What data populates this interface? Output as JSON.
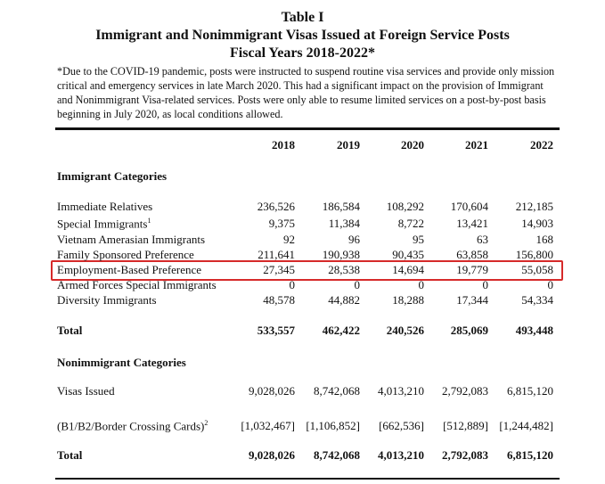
{
  "header": {
    "lines": [
      "Table I",
      "Immigrant and Nonimmigrant Visas Issued at Foreign Service Posts",
      "Fiscal Years  2018-2022*"
    ],
    "note": "*Due to the COVID-19 pandemic, posts were instructed to suspend routine visa services and provide only mission critical and emergency services in late March 2020.  This had a significant impact on the provision of Immigrant and Nonimmigrant Visa-related services.  Posts were only able to resume limited services on a post-by-post basis beginning in July 2020, as local conditions allowed."
  },
  "table": {
    "columns": [
      "2018",
      "2019",
      "2020",
      "2021",
      "2022"
    ],
    "rows": [
      {
        "section": "Immigrant Categories"
      },
      {
        "label": "Immediate Relatives",
        "cells": [
          "236,526",
          "186,584",
          "108,292",
          "170,604",
          "212,185"
        ]
      },
      {
        "label": "Special Immigrants",
        "sup": "1",
        "cells": [
          "9,375",
          "11,384",
          "8,722",
          "13,421",
          "14,903"
        ]
      },
      {
        "label": "Vietnam Amerasian Immigrants",
        "cells": [
          "92",
          "96",
          "95",
          "63",
          "168"
        ]
      },
      {
        "label": "Family Sponsored Preference",
        "cells": [
          "211,641",
          "190,938",
          "90,435",
          "63,858",
          "156,800"
        ]
      },
      {
        "label": "Employment-Based Preference",
        "cells": [
          "27,345",
          "28,538",
          "14,694",
          "19,779",
          "55,058"
        ]
      },
      {
        "label": "Armed Forces Special Immigrants",
        "cells": [
          "0",
          "0",
          "0",
          "0",
          "0"
        ]
      },
      {
        "label": "Diversity Immigrants",
        "cells": [
          "48,578",
          "44,882",
          "18,288",
          "17,344",
          "54,334"
        ]
      },
      {
        "label": "Total",
        "bold": true,
        "cells": [
          "533,557",
          "462,422",
          "240,526",
          "285,069",
          "493,448"
        ]
      },
      {
        "section": "Nonimmigrant Categories"
      },
      {
        "label": "Visas Issued",
        "cells": [
          "9,028,026",
          "8,742,068",
          "4,013,210",
          "2,792,083",
          "6,815,120"
        ]
      },
      {
        "label": "(B1/B2/Border Crossing Cards)",
        "sup": "2",
        "cells": [
          "[1,032,467]",
          "[1,106,852]",
          "[662,536]",
          "[512,889]",
          "[1,244,482]"
        ]
      },
      {
        "label": "Total",
        "bold": true,
        "cells": [
          "9,028,026",
          "8,742,068",
          "4,013,210",
          "2,792,083",
          "6,815,120"
        ]
      }
    ]
  }
}
